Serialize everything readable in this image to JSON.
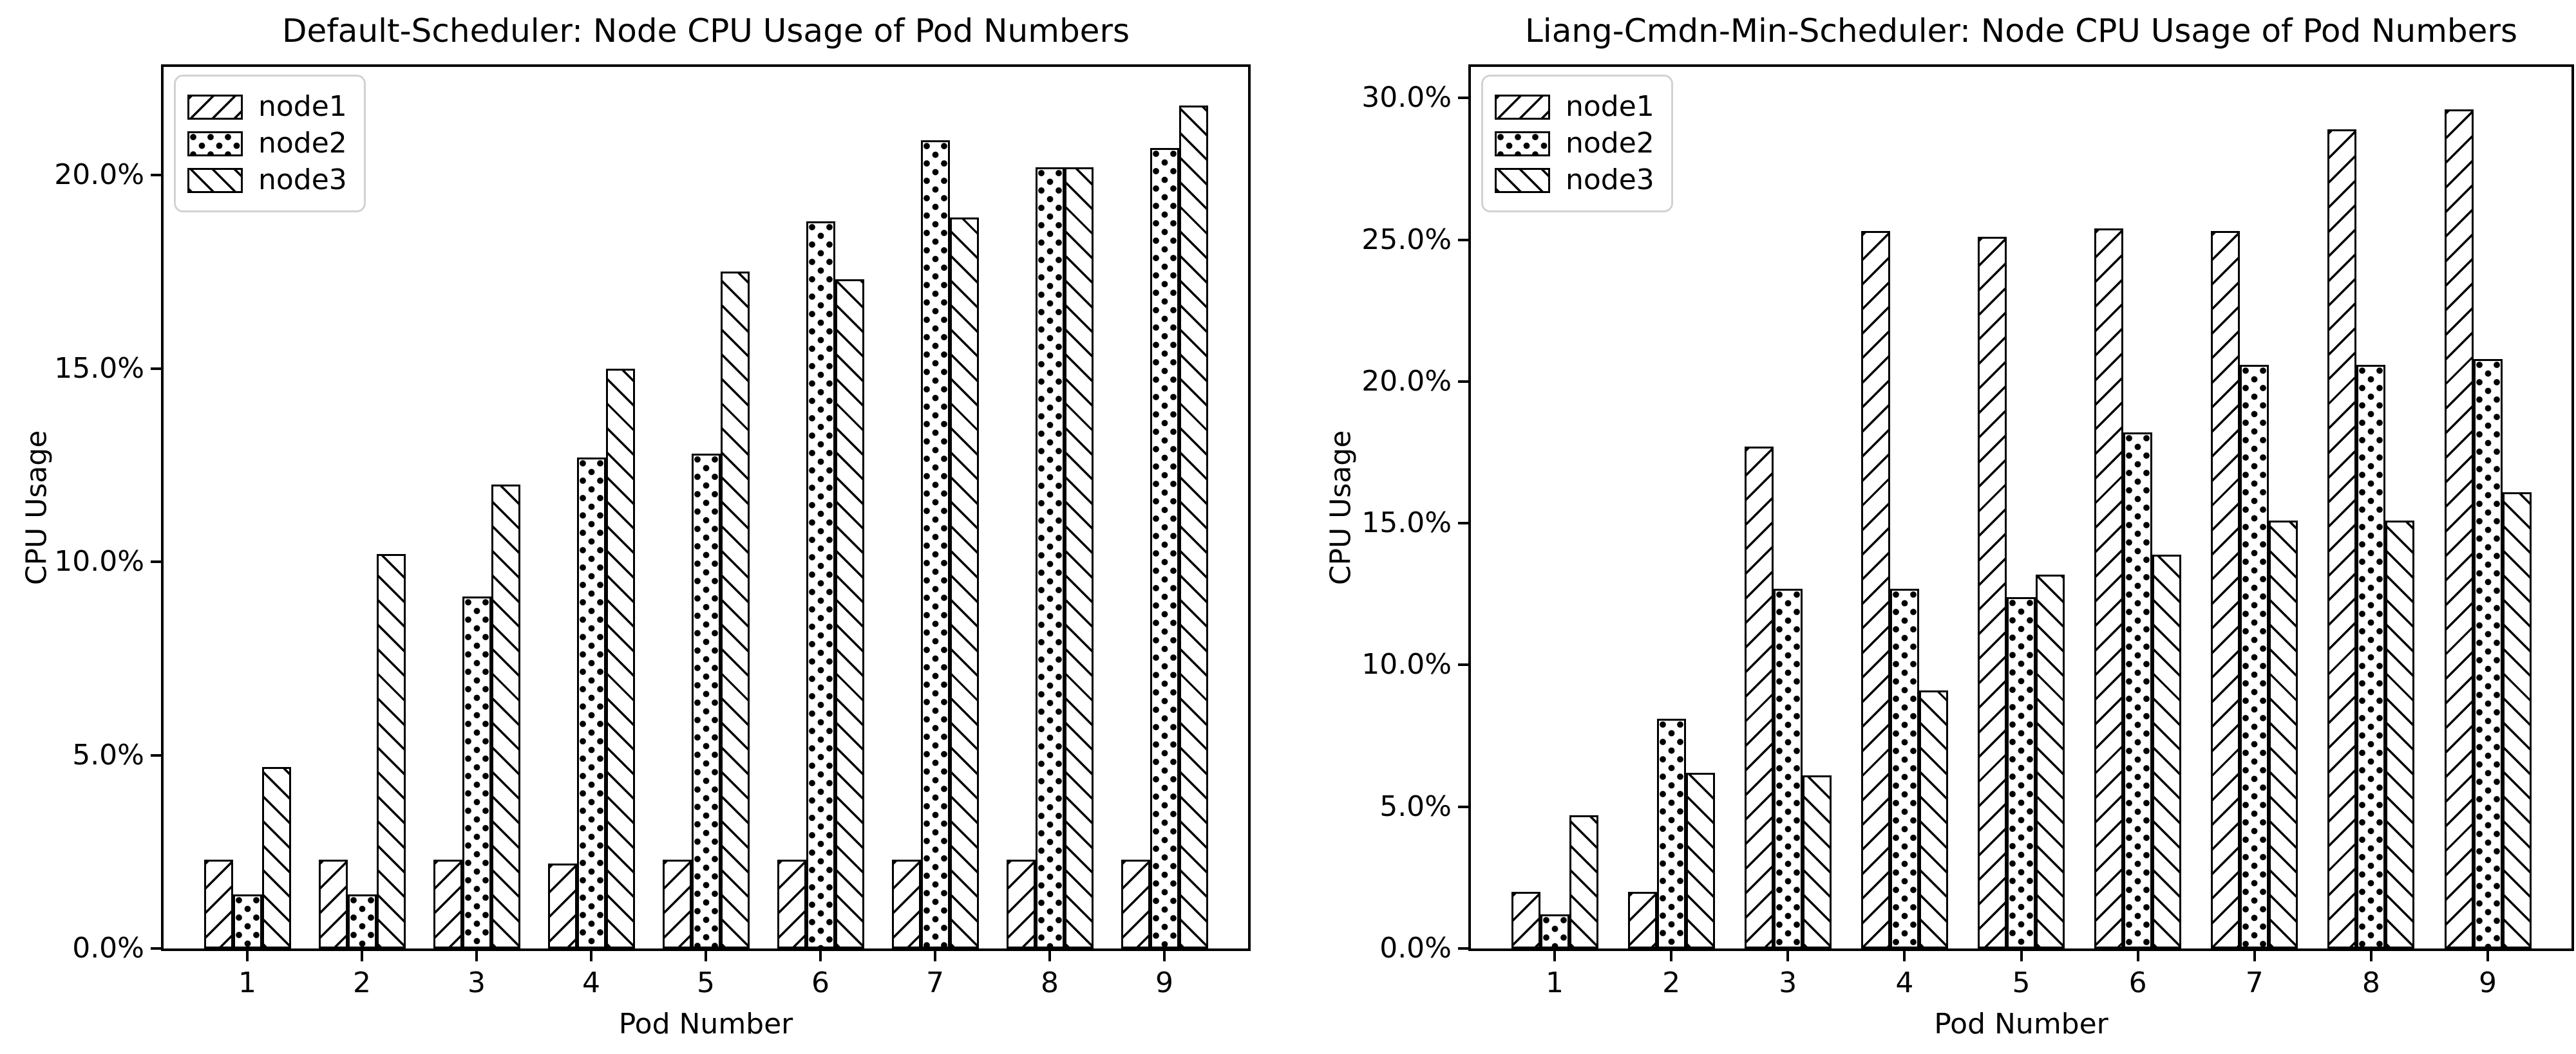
{
  "figure": {
    "background": "#ffffff",
    "edge_color": "#000000",
    "bar_fill": "#ffffff",
    "legend_border_color": "#d2d2d2"
  },
  "chart_data": [
    {
      "type": "bar",
      "title": "Default-Scheduler: Node CPU Usage of Pod Numbers",
      "xlabel": "Pod Number",
      "ylabel": "CPU Usage",
      "categories": [
        "1",
        "2",
        "3",
        "4",
        "5",
        "6",
        "7",
        "8",
        "9"
      ],
      "series": [
        {
          "name": "node1",
          "hatch": "/",
          "values": [
            2.3,
            2.3,
            2.3,
            2.2,
            2.3,
            2.3,
            2.3,
            2.3,
            2.3
          ]
        },
        {
          "name": "node2",
          "hatch": ".",
          "values": [
            1.4,
            1.4,
            9.1,
            12.7,
            12.8,
            18.8,
            20.9,
            20.2,
            20.7
          ]
        },
        {
          "name": "node3",
          "hatch": "\\",
          "values": [
            4.7,
            10.2,
            12.0,
            15.0,
            17.5,
            17.3,
            18.9,
            20.2,
            21.8
          ]
        }
      ],
      "ylim": [
        0,
        22.8
      ],
      "ytick_values": [
        0,
        5,
        10,
        15,
        20
      ],
      "ytick_labels": [
        "0.0%",
        "5.0%",
        "10.0%",
        "15.0%",
        "20.0%"
      ],
      "legend_position": "upper-left",
      "grid": false
    },
    {
      "type": "bar",
      "title": "Liang-Cmdn-Min-Scheduler: Node CPU Usage of Pod Numbers",
      "xlabel": "Pod Number",
      "ylabel": "CPU Usage",
      "categories": [
        "1",
        "2",
        "3",
        "4",
        "5",
        "6",
        "7",
        "8",
        "9"
      ],
      "series": [
        {
          "name": "node1",
          "hatch": "/",
          "values": [
            2.0,
            2.0,
            17.7,
            25.3,
            25.1,
            25.4,
            25.3,
            28.9,
            29.6
          ]
        },
        {
          "name": "node2",
          "hatch": ".",
          "values": [
            1.2,
            8.1,
            12.7,
            12.7,
            12.4,
            18.2,
            20.6,
            20.6,
            20.8
          ]
        },
        {
          "name": "node3",
          "hatch": "\\",
          "values": [
            4.7,
            6.2,
            6.1,
            9.1,
            13.2,
            13.9,
            15.1,
            15.1,
            16.1
          ]
        }
      ],
      "ylim": [
        0,
        31.1
      ],
      "ytick_values": [
        0,
        5,
        10,
        15,
        20,
        25,
        30
      ],
      "ytick_labels": [
        "0.0%",
        "5.0%",
        "10.0%",
        "15.0%",
        "20.0%",
        "25.0%",
        "30.0%"
      ],
      "legend_position": "upper-left",
      "grid": false
    }
  ]
}
